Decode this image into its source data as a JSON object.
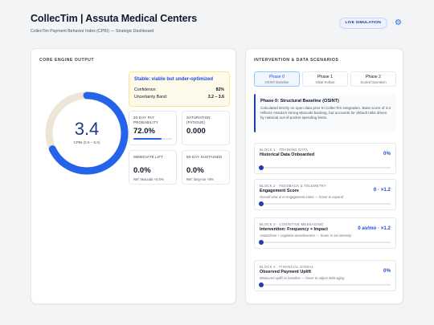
{
  "header": {
    "title": "CollecTim | Assuta Medical Centers",
    "subtitle": "CollecTim Payment Behavior Index (CPBI) — Strategic Dashboard",
    "live_button": "LIVE SIMULATION",
    "settings_icon": "gear-icon"
  },
  "engine": {
    "title": "CORE ENGINE OUTPUT",
    "cpbi_value": "3.4",
    "cpbi_fraction": 0.68,
    "cpbi_label": "CPBI (0.0 – 5.0)",
    "status": {
      "title": "Stable: viable but under-optimized",
      "confidence_label": "Confidence:",
      "confidence_value": "82%",
      "uncertainty_label": "Uncertainty Band:",
      "uncertainty_value": "3.2 – 3.6"
    },
    "metrics": {
      "pay_probability": {
        "label": "30-DAY PAY PROBABILITY",
        "value": "72.0%",
        "fraction": 0.72
      },
      "saturation": {
        "label": "SATURATION (FATIGUE)",
        "value": "0.000"
      },
      "immediate_lift": {
        "label": "IMMEDIATE LIFT",
        "value": "0.0%",
        "sub": "Ref: Maccabi +0.0%"
      },
      "sustained": {
        "label": "90-DAY SUSTAINED",
        "value": "0.0%",
        "sub": "Ref: long-run +0%"
      }
    }
  },
  "scenarios": {
    "title": "INTERVENTION & DATA SCENARIOS",
    "phases": [
      {
        "name": "Phase 0",
        "sub": "OSINT Baseline"
      },
      {
        "name": "Phase 1",
        "sub": "Initial Rollout"
      },
      {
        "name": "Phase 2",
        "sub": "Scaled Operation"
      }
    ],
    "description": {
      "title": "Phase 0: Structural Baseline (OSINT)",
      "text": "Calculated strictly on open data prior to CollecTim integration. Base score of 3.4 reflects Assuta's strong Maccabi backing, but accounts for default risks driven by national out-of-pocket spending limits."
    },
    "blocks": [
      {
        "tag": "BLOCK 1 · TRAINING DATA",
        "title": "Historical Data Onboarded",
        "sub": "",
        "value": "0%",
        "level": 0
      },
      {
        "tag": "BLOCK 2 · FEEDBACK & TELEMETRY",
        "title": "Engagement Score",
        "sub": "Overall view & re-engagement index — hover to expand",
        "value": "0 · ×1.2",
        "level": 0
      },
      {
        "tag": "BLOCK 3 · COGNITIVE MESSAGING",
        "title": "Intervention: Frequency × Impact",
        "sub": "Avatar/tone + cognitive assertiveness — hover to set intensity",
        "value": "0 av/mo · ×1.2",
        "level": 0
      },
      {
        "tag": "BLOCK 4 · FINANCIAL SIGNAL",
        "title": "Observed Payment Uplift",
        "sub": "Measured uplift vs baseline — hover to adjust debt aging",
        "value": "0%",
        "level": 0
      }
    ]
  }
}
